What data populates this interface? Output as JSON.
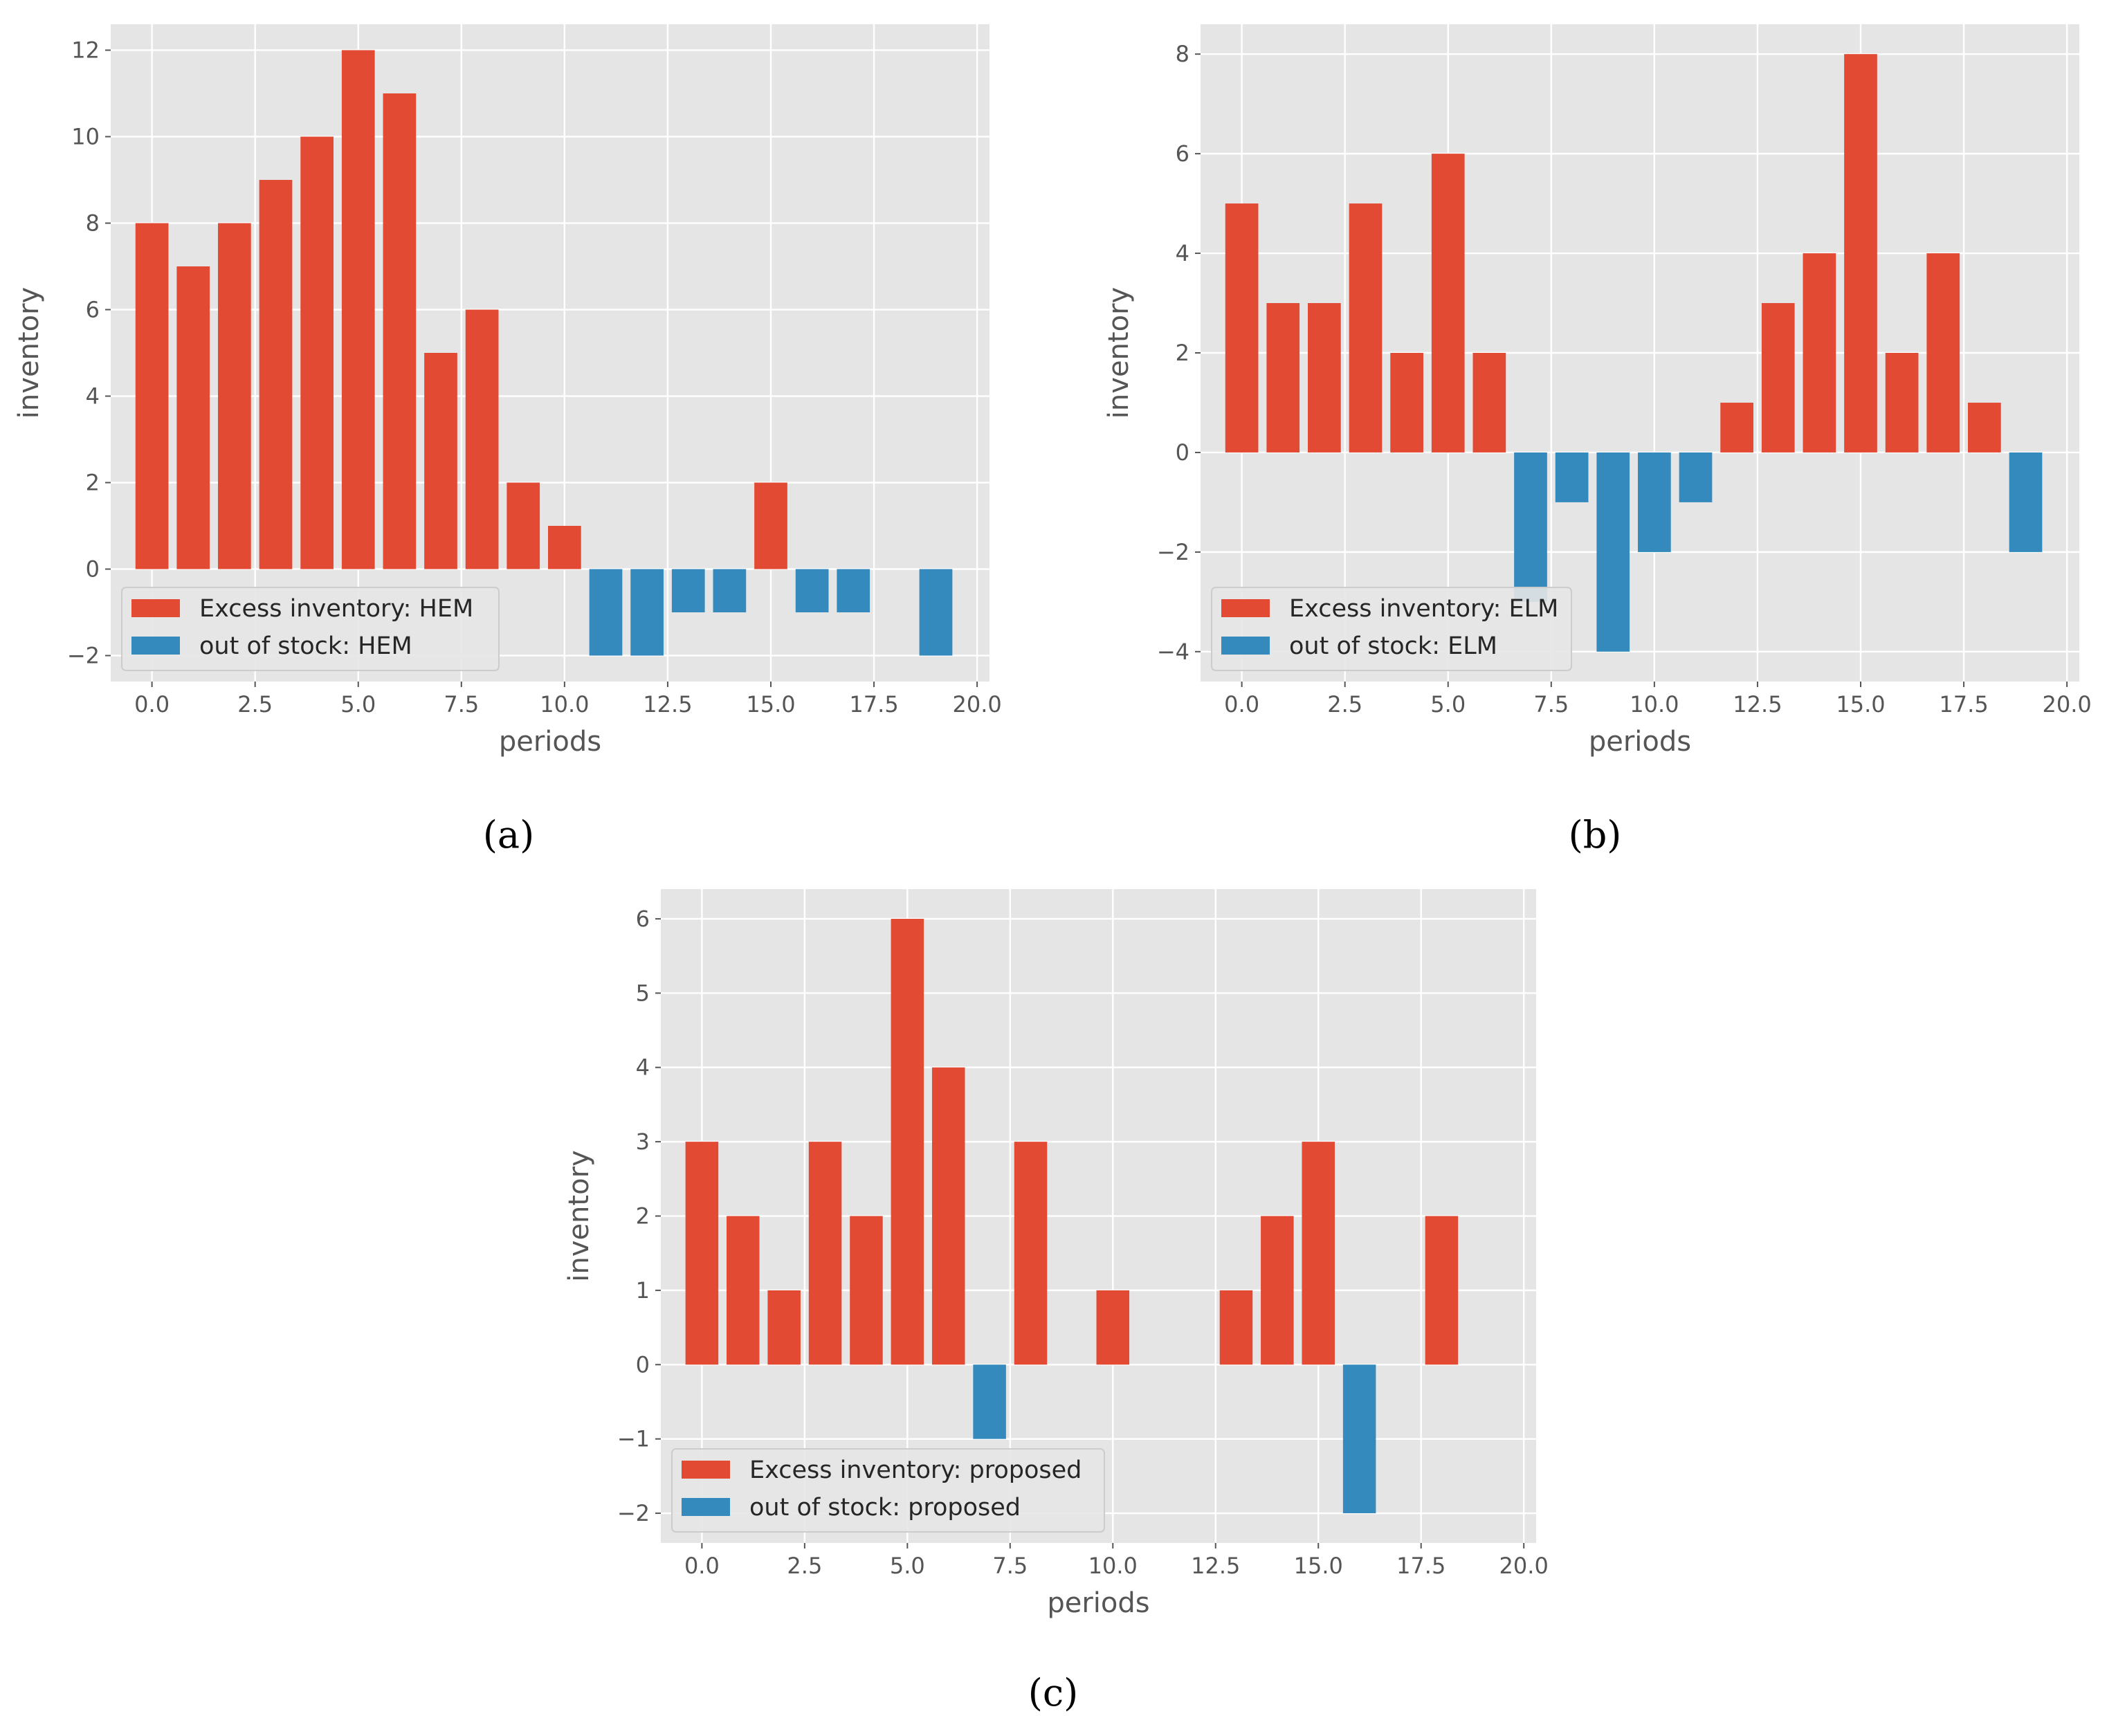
{
  "colors": {
    "excess": "#E24A33",
    "stock": "#348ABD",
    "panel_bg": "#E5E5E5",
    "grid": "#FFFFFF",
    "tick": "#555555"
  },
  "chart_data": [
    {
      "type": "bar",
      "caption": "(a)",
      "xlabel": "periods",
      "ylabel": "inventory",
      "xlim": [
        -1,
        20.3
      ],
      "ylim": [
        -2.6,
        12.6
      ],
      "xticks": [
        0,
        2.5,
        5,
        7.5,
        10,
        12.5,
        15,
        17.5,
        20
      ],
      "xtick_labels": [
        "0.0",
        "2.5",
        "5.0",
        "7.5",
        "10.0",
        "12.5",
        "15.0",
        "17.5",
        "20.0"
      ],
      "yticks": [
        -2,
        0,
        2,
        4,
        6,
        8,
        10,
        12
      ],
      "ytick_labels": [
        "−2",
        "0",
        "2",
        "4",
        "6",
        "8",
        "10",
        "12"
      ],
      "grid": true,
      "legend_position": "lower-left",
      "x": [
        0,
        1,
        2,
        3,
        4,
        5,
        6,
        7,
        8,
        9,
        10,
        11,
        12,
        13,
        14,
        15,
        16,
        17,
        18,
        19
      ],
      "series": [
        {
          "name": "Excess inventory: HEM",
          "values": [
            8,
            7,
            8,
            9,
            10,
            12,
            11,
            5,
            6,
            2,
            1,
            0,
            0,
            0,
            0,
            2,
            0,
            0,
            0,
            0
          ]
        },
        {
          "name": "out of stock: HEM",
          "values": [
            0,
            0,
            0,
            0,
            0,
            0,
            0,
            0,
            0,
            0,
            0,
            -2,
            -2,
            -1,
            -1,
            0,
            -1,
            -1,
            0,
            -2
          ]
        }
      ]
    },
    {
      "type": "bar",
      "caption": "(b)",
      "xlabel": "periods",
      "ylabel": "inventory",
      "xlim": [
        -1,
        20.3
      ],
      "ylim": [
        -4.6,
        8.6
      ],
      "xticks": [
        0,
        2.5,
        5,
        7.5,
        10,
        12.5,
        15,
        17.5,
        20
      ],
      "xtick_labels": [
        "0.0",
        "2.5",
        "5.0",
        "7.5",
        "10.0",
        "12.5",
        "15.0",
        "17.5",
        "20.0"
      ],
      "yticks": [
        -4,
        -2,
        0,
        2,
        4,
        6,
        8
      ],
      "ytick_labels": [
        "−4",
        "−2",
        "0",
        "2",
        "4",
        "6",
        "8"
      ],
      "grid": true,
      "legend_position": "lower-left",
      "x": [
        0,
        1,
        2,
        3,
        4,
        5,
        6,
        7,
        8,
        9,
        10,
        11,
        12,
        13,
        14,
        15,
        16,
        17,
        18,
        19
      ],
      "series": [
        {
          "name": "Excess inventory: ELM",
          "values": [
            5,
            3,
            3,
            5,
            2,
            6,
            2,
            0,
            0,
            0,
            0,
            0,
            1,
            3,
            4,
            8,
            2,
            4,
            1,
            0
          ]
        },
        {
          "name": "out of stock: ELM",
          "values": [
            0,
            0,
            0,
            0,
            0,
            0,
            0,
            -3,
            -1,
            -4,
            -2,
            -1,
            0,
            0,
            0,
            0,
            0,
            0,
            0,
            -2
          ]
        }
      ]
    },
    {
      "type": "bar",
      "caption": "(c)",
      "xlabel": "periods",
      "ylabel": "inventory",
      "xlim": [
        -1,
        20.3
      ],
      "ylim": [
        -2.4,
        6.4
      ],
      "xticks": [
        0,
        2.5,
        5,
        7.5,
        10,
        12.5,
        15,
        17.5,
        20
      ],
      "xtick_labels": [
        "0.0",
        "2.5",
        "5.0",
        "7.5",
        "10.0",
        "12.5",
        "15.0",
        "17.5",
        "20.0"
      ],
      "yticks": [
        -2,
        -1,
        0,
        1,
        2,
        3,
        4,
        5,
        6
      ],
      "ytick_labels": [
        "−2",
        "−1",
        "0",
        "1",
        "2",
        "3",
        "4",
        "5",
        "6"
      ],
      "grid": true,
      "legend_position": "lower-left",
      "x": [
        0,
        1,
        2,
        3,
        4,
        5,
        6,
        7,
        8,
        9,
        10,
        11,
        12,
        13,
        14,
        15,
        16,
        17,
        18,
        19
      ],
      "series": [
        {
          "name": "Excess inventory: proposed",
          "values": [
            3,
            2,
            1,
            3,
            2,
            6,
            4,
            0,
            3,
            0,
            1,
            0,
            0,
            1,
            2,
            3,
            0,
            0,
            2,
            0
          ]
        },
        {
          "name": "out of stock: proposed",
          "values": [
            0,
            0,
            0,
            0,
            0,
            0,
            0,
            -1,
            0,
            0,
            0,
            0,
            0,
            0,
            0,
            0,
            -2,
            0,
            0,
            0
          ]
        }
      ]
    }
  ]
}
